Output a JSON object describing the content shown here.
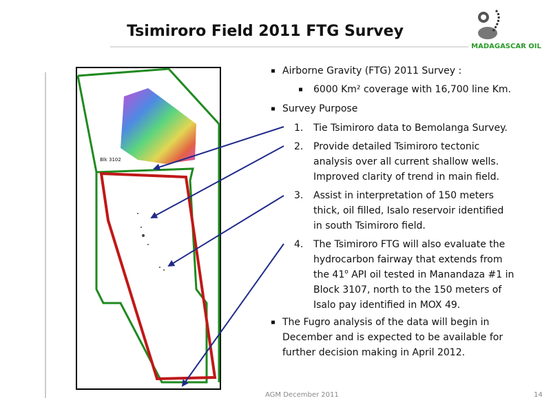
{
  "header": {
    "title": "Tsimiroro Field  2011 FTG Survey",
    "logo_text": "MADAGASCAR OIL"
  },
  "map": {
    "block_label": "Blk 3102"
  },
  "bullets": [
    {
      "text": "Airborne Gravity (FTG) 2011 Survey :",
      "sub": [
        "6000 Km² coverage with 16,700 line Km."
      ]
    },
    {
      "text": "Survey Purpose"
    }
  ],
  "numbered": [
    {
      "number": "1.",
      "lines": [
        "Tie Tsimiroro data to Bemolanga Survey."
      ]
    },
    {
      "number": "2.",
      "lines": [
        "Provide detailed Tsimiroro tectonic",
        "analysis over all current shallow wells.",
        "Improved clarity of trend in main field."
      ]
    },
    {
      "number": "3.",
      "lines": [
        "Assist in interpretation of 150 meters",
        "thick, oil filled, Isalo reservoir identified",
        "in south Tsimiroro field."
      ]
    },
    {
      "number": "4.",
      "lines": [
        "The Tsimiroro FTG will also evaluate the",
        "hydrocarbon fairway that extends from",
        {
          "before": "the 41",
          "sup": "o",
          "after": " API oil tested in Manandaza #1 in"
        },
        "Block 3107, north to the 150 meters of",
        "Isalo pay identified in MOX 49."
      ]
    }
  ],
  "final_bullet": {
    "lines": [
      "The Fugro analysis of the data will begin in",
      "December and is expected to be available for",
      "further decision making in April 2012."
    ]
  },
  "footer": {
    "text": "AGM December  2011",
    "page": "14"
  }
}
